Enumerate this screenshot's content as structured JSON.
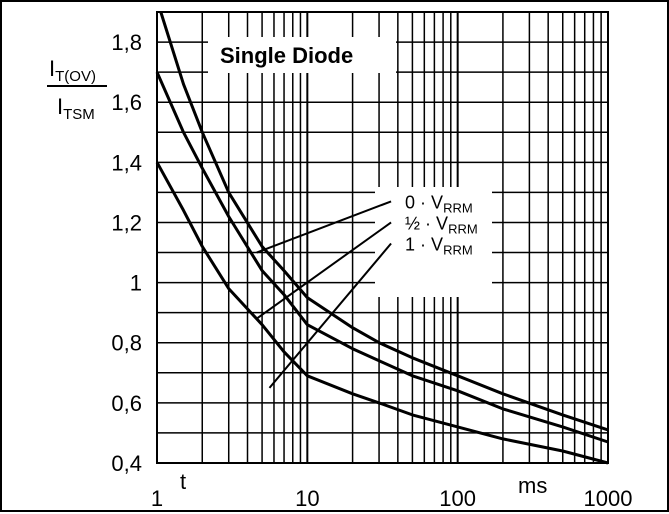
{
  "chart_data": {
    "type": "line",
    "title": "Single Diode",
    "ylabel": {
      "numerator_main": "I",
      "numerator_sub": "T(OV)",
      "denominator_main": "I",
      "denominator_sub": "TSM"
    },
    "xlabel": "t",
    "x_unit": "ms",
    "x_scale": "log",
    "xlim": [
      1,
      1000
    ],
    "ylim": [
      0.4,
      1.9
    ],
    "grid": true,
    "x_ticks": [
      {
        "value": 1,
        "label": "1"
      },
      {
        "value": 10,
        "label": "10"
      },
      {
        "value": 100,
        "label": "100"
      },
      {
        "value": 1000,
        "label": "1000"
      }
    ],
    "y_ticks": [
      {
        "value": 0.4,
        "label": "0,4"
      },
      {
        "value": 0.6,
        "label": "0,6"
      },
      {
        "value": 0.8,
        "label": "0,8"
      },
      {
        "value": 1.0,
        "label": "1"
      },
      {
        "value": 1.2,
        "label": "1,2"
      },
      {
        "value": 1.4,
        "label": "1,4"
      },
      {
        "value": 1.6,
        "label": "1,6"
      },
      {
        "value": 1.8,
        "label": "1,8"
      }
    ],
    "series": [
      {
        "name_main": "0 · V",
        "name_sub": "RRM",
        "points": [
          [
            1.06,
            1.9
          ],
          [
            1.5,
            1.66
          ],
          [
            2,
            1.5
          ],
          [
            3,
            1.3
          ],
          [
            5,
            1.12
          ],
          [
            7,
            1.04
          ],
          [
            10,
            0.95
          ],
          [
            20,
            0.85
          ],
          [
            30,
            0.8
          ],
          [
            50,
            0.75
          ],
          [
            100,
            0.69
          ],
          [
            200,
            0.63
          ],
          [
            500,
            0.56
          ],
          [
            1000,
            0.51
          ]
        ],
        "label_anchor": [
          30,
          1.27
        ],
        "leader_end": [
          4.6,
          1.1
        ]
      },
      {
        "name_main": "½ · V",
        "name_sub": "RRM",
        "points": [
          [
            1,
            1.7
          ],
          [
            1.5,
            1.5
          ],
          [
            2,
            1.38
          ],
          [
            3,
            1.22
          ],
          [
            5,
            1.04
          ],
          [
            7,
            0.96
          ],
          [
            10,
            0.86
          ],
          [
            20,
            0.78
          ],
          [
            30,
            0.74
          ],
          [
            50,
            0.69
          ],
          [
            100,
            0.64
          ],
          [
            200,
            0.58
          ],
          [
            500,
            0.52
          ],
          [
            1000,
            0.47
          ]
        ],
        "label_anchor": [
          30,
          1.2
        ],
        "leader_end": [
          4.6,
          0.88
        ]
      },
      {
        "name_main": "1 · V",
        "name_sub": "RRM",
        "points": [
          [
            1,
            1.4
          ],
          [
            1.5,
            1.24
          ],
          [
            2,
            1.12
          ],
          [
            3,
            0.98
          ],
          [
            5,
            0.86
          ],
          [
            7,
            0.77
          ],
          [
            10,
            0.69
          ],
          [
            20,
            0.63
          ],
          [
            30,
            0.6
          ],
          [
            50,
            0.56
          ],
          [
            100,
            0.52
          ],
          [
            200,
            0.48
          ],
          [
            500,
            0.44
          ],
          [
            1000,
            0.4
          ]
        ],
        "label_anchor": [
          30,
          1.13
        ],
        "leader_end": [
          5.6,
          0.65
        ]
      }
    ]
  }
}
